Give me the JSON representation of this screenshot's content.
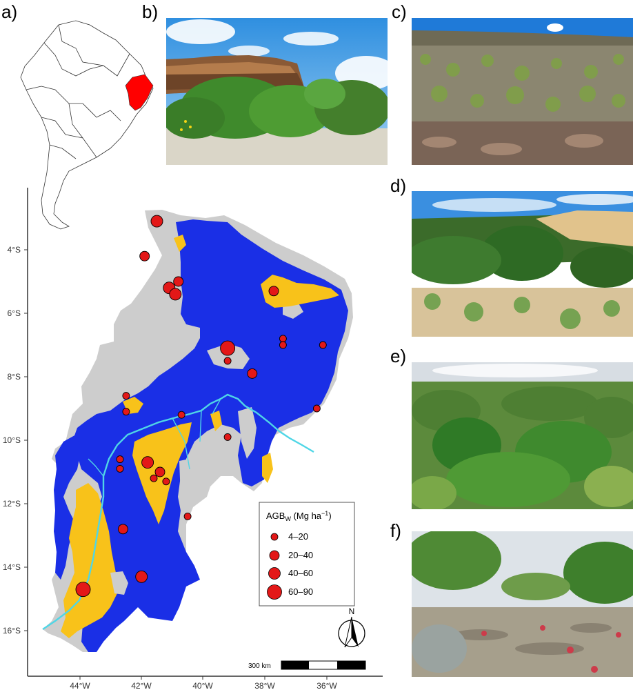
{
  "panel_labels": {
    "a": "a)",
    "b": "b)",
    "c": "c)",
    "d": "d)",
    "e": "e)",
    "f": "f)"
  },
  "map": {
    "y_axis_labels": [
      "4°S",
      "6°S",
      "8°S",
      "10°S",
      "12°S",
      "14°S",
      "16°S"
    ],
    "x_axis_labels": [
      "44°W",
      "42°W",
      "40°W",
      "38°W",
      "36°W"
    ],
    "legend": {
      "title": "AGBW (Mg ha−1)",
      "title_main": "AGB",
      "title_sub": "W",
      "title_unit_open": " (Mg ha",
      "title_unit_sup": "−1",
      "title_unit_close": ")",
      "items": [
        "4–20",
        "20–40",
        "40–60",
        "60–90"
      ]
    },
    "north_arrow_label": "N",
    "scale_bar_label": "300 km",
    "colors": {
      "dense": "#1a2fe6",
      "open": "#f8c21a",
      "other": "#cdcdcd",
      "river": "#4fd6e6",
      "site": "#e31818",
      "highlight": "#ff0000"
    },
    "sites": [
      {
        "lon": -41.5,
        "lat": -3.1,
        "class": "40–60"
      },
      {
        "lon": -41.9,
        "lat": -4.2,
        "class": "20–40"
      },
      {
        "lon": -41.1,
        "lat": -5.2,
        "class": "40–60"
      },
      {
        "lon": -40.8,
        "lat": -5.0,
        "class": "20–40"
      },
      {
        "lon": -40.9,
        "lat": -5.4,
        "class": "40–60"
      },
      {
        "lon": -37.7,
        "lat": -5.3,
        "class": "20–40"
      },
      {
        "lon": -39.2,
        "lat": -7.1,
        "class": "60–90"
      },
      {
        "lon": -39.2,
        "lat": -7.5,
        "class": "4–20"
      },
      {
        "lon": -37.4,
        "lat": -6.8,
        "class": "4–20"
      },
      {
        "lon": -37.4,
        "lat": -7.0,
        "class": "4–20"
      },
      {
        "lon": -36.1,
        "lat": -7.0,
        "class": "4–20"
      },
      {
        "lon": -38.4,
        "lat": -7.9,
        "class": "20–40"
      },
      {
        "lon": -42.5,
        "lat": -8.6,
        "class": "4–20"
      },
      {
        "lon": -42.5,
        "lat": -9.1,
        "class": "4–20"
      },
      {
        "lon": -40.7,
        "lat": -9.2,
        "class": "4–20"
      },
      {
        "lon": -36.3,
        "lat": -9.0,
        "class": "4–20"
      },
      {
        "lon": -39.2,
        "lat": -9.9,
        "class": "4–20"
      },
      {
        "lon": -42.7,
        "lat": -10.6,
        "class": "4–20"
      },
      {
        "lon": -42.7,
        "lat": -10.9,
        "class": "4–20"
      },
      {
        "lon": -41.8,
        "lat": -10.7,
        "class": "40–60"
      },
      {
        "lon": -41.4,
        "lat": -11.0,
        "class": "20–40"
      },
      {
        "lon": -41.6,
        "lat": -11.2,
        "class": "4–20"
      },
      {
        "lon": -41.2,
        "lat": -11.3,
        "class": "4–20"
      },
      {
        "lon": -40.5,
        "lat": -12.4,
        "class": "4–20"
      },
      {
        "lon": -42.6,
        "lat": -12.8,
        "class": "20–40"
      },
      {
        "lon": -42.0,
        "lat": -14.3,
        "class": "40–60"
      },
      {
        "lon": -43.9,
        "lat": -14.7,
        "class": "60–90"
      }
    ]
  }
}
